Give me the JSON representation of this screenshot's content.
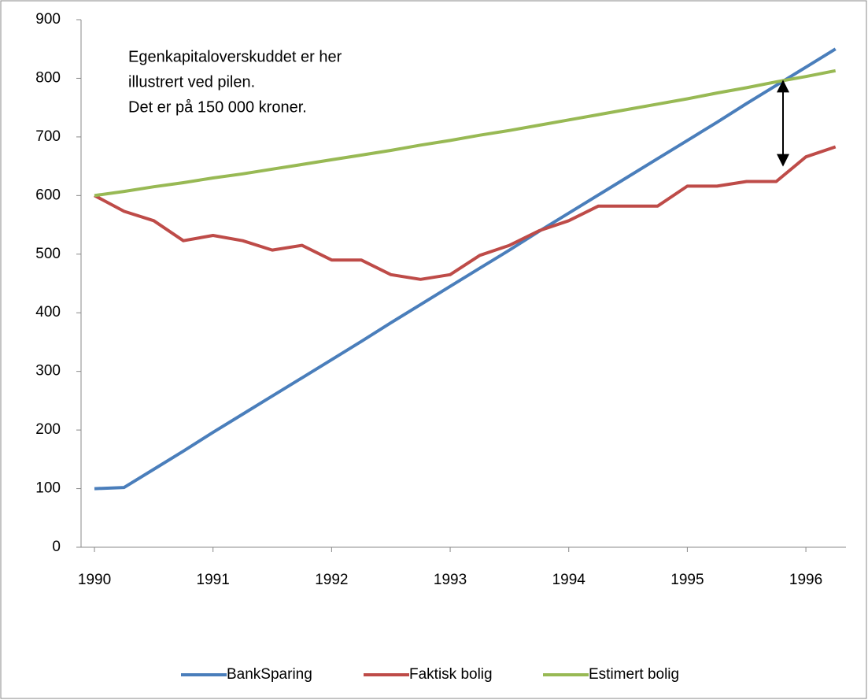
{
  "chart_data": {
    "type": "line",
    "annotation": [
      "Egenkapitaloverskuddet er her",
      "illustrert ved pilen.",
      "Det er på 150 000 kroner."
    ],
    "x": [
      1990,
      1990.25,
      1990.5,
      1990.75,
      1991,
      1991.25,
      1991.5,
      1991.75,
      1992,
      1992.25,
      1992.5,
      1992.75,
      1993,
      1993.25,
      1993.5,
      1993.75,
      1994,
      1994.25,
      1994.5,
      1994.75,
      1995,
      1995.25,
      1995.5,
      1995.75,
      1996,
      1996.25
    ],
    "series": [
      {
        "name": "BankSparing",
        "color": "#4a7ebb",
        "values": [
          100,
          102,
          133,
          164,
          196,
          227,
          258,
          289,
          320,
          351,
          383,
          414,
          445,
          476,
          507,
          539,
          570,
          601,
          632,
          663,
          694,
          725,
          757,
          788,
          819,
          850
        ]
      },
      {
        "name": "Faktisk bolig",
        "color": "#be4b48",
        "values": [
          600,
          573,
          557,
          523,
          532,
          523,
          507,
          515,
          490,
          490,
          465,
          457,
          465,
          498,
          515,
          540,
          557,
          582,
          582,
          582,
          616,
          616,
          624,
          624,
          666,
          683
        ]
      },
      {
        "name": "Estimert bolig",
        "color": "#98b954",
        "values": [
          600,
          607,
          615,
          622,
          630,
          637,
          645,
          653,
          661,
          669,
          677,
          686,
          694,
          703,
          711,
          720,
          729,
          738,
          747,
          756,
          765,
          775,
          784,
          794,
          803,
          813
        ]
      }
    ],
    "xlim": [
      1989.887,
      1996.338
    ],
    "xticks": [
      1990,
      1991,
      1992,
      1993,
      1994,
      1995,
      1996
    ],
    "ylim": [
      0,
      900
    ],
    "yticks": [
      0,
      100,
      200,
      300,
      400,
      500,
      600,
      700,
      800,
      900
    ],
    "grid": false,
    "legend": "bottom"
  }
}
